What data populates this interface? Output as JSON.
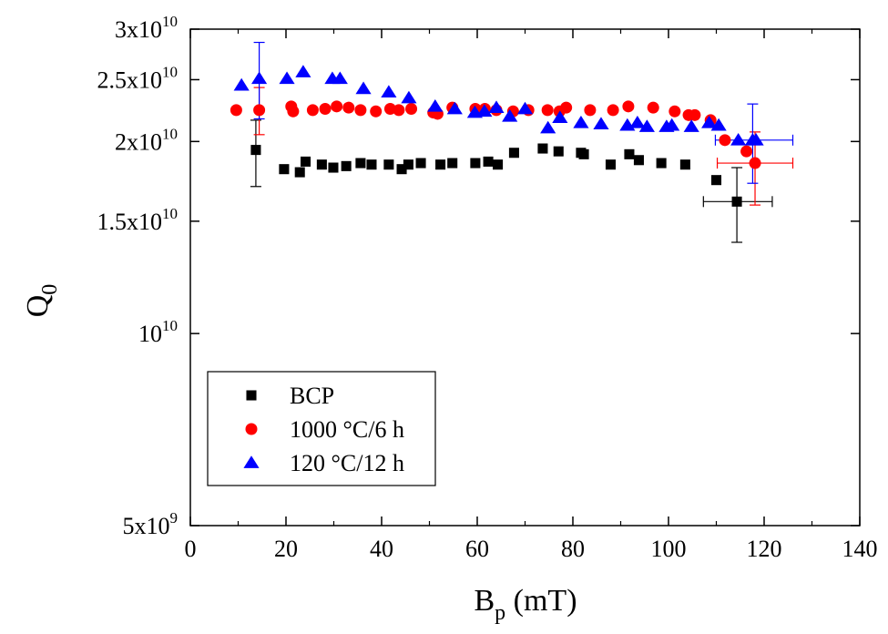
{
  "chart_data": {
    "type": "scatter",
    "title": "",
    "xlabel": "B",
    "xlabel_sub": "p",
    "xlabel_unit": " (mT)",
    "ylabel": "Q",
    "ylabel_sub": "0",
    "xlim": [
      0,
      140
    ],
    "ylim": [
      5000000000,
      30000000000
    ],
    "yscale": "log",
    "grid": false,
    "legend_position": "bottom-left",
    "x_ticks": [
      0,
      20,
      40,
      60,
      80,
      100,
      120,
      140
    ],
    "x_tick_labels": [
      "0",
      "20",
      "40",
      "60",
      "80",
      "100",
      "120",
      "140"
    ],
    "y_ticks": [
      {
        "value": 30000000000,
        "mantissa": "3x10",
        "exp": "10"
      },
      {
        "value": 25000000000,
        "mantissa": "2.5x10",
        "exp": "10"
      },
      {
        "value": 20000000000,
        "mantissa": "2x10",
        "exp": "10"
      },
      {
        "value": 15000000000,
        "mantissa": "1.5x10",
        "exp": "10"
      },
      {
        "value": 10000000000,
        "mantissa": "10",
        "exp": "10"
      },
      {
        "value": 5000000000,
        "mantissa": "5x10",
        "exp": "9"
      }
    ],
    "series": [
      {
        "name": "BCP",
        "marker": "square",
        "color": "#000000",
        "x": [
          13.7,
          19.6,
          22.9,
          24.1,
          27.5,
          29.9,
          32.6,
          35.6,
          37.9,
          41.5,
          44.2,
          45.6,
          48.2,
          52.3,
          54.8,
          59.6,
          62.3,
          64.3,
          67.7,
          73.7,
          77.0,
          81.7,
          82.3,
          87.9,
          91.8,
          93.8,
          98.5,
          103.5,
          110.0,
          114.3
        ],
        "y": [
          19400000000.0,
          18100000000.0,
          17900000000.0,
          18600000000.0,
          18400000000.0,
          18200000000.0,
          18300000000.0,
          18500000000.0,
          18400000000.0,
          18400000000.0,
          18100000000.0,
          18400000000.0,
          18500000000.0,
          18400000000.0,
          18500000000.0,
          18500000000.0,
          18600000000.0,
          18400000000.0,
          19200000000.0,
          19500000000.0,
          19300000000.0,
          19200000000.0,
          19100000000.0,
          18400000000.0,
          19100000000.0,
          18700000000.0,
          18500000000.0,
          18400000000.0,
          17400000000.0,
          16100000000.0
        ],
        "error_bars": [
          {
            "x": 13.7,
            "y": 19400000000.0,
            "y_low": 17000000000.0,
            "y_high": 21600000000.0
          },
          {
            "x": 114.3,
            "y": 16100000000.0,
            "y_low": 13900000000.0,
            "y_high": 18200000000.0,
            "x_low": 107.3,
            "x_high": 121.7
          }
        ]
      },
      {
        "name": "1000 °C/6 h",
        "marker": "circle",
        "color": "#ff0000",
        "x": [
          9.6,
          14.4,
          21.1,
          21.5,
          25.6,
          28.2,
          30.6,
          33.1,
          35.6,
          38.8,
          41.8,
          43.6,
          46.2,
          50.8,
          51.7,
          54.8,
          59.6,
          61.6,
          64.0,
          67.5,
          70.7,
          74.7,
          77.2,
          78.6,
          83.6,
          88.4,
          91.6,
          96.8,
          101.3,
          104.2,
          105.5,
          108.8,
          111.8,
          116.3,
          118.1
        ],
        "y": [
          22400000000.0,
          22400000000.0,
          22700000000.0,
          22300000000.0,
          22400000000.0,
          22500000000.0,
          22700000000.0,
          22600000000.0,
          22400000000.0,
          22300000000.0,
          22500000000.0,
          22400000000.0,
          22500000000.0,
          22200000000.0,
          22100000000.0,
          22600000000.0,
          22500000000.0,
          22500000000.0,
          22400000000.0,
          22300000000.0,
          22400000000.0,
          22400000000.0,
          22300000000.0,
          22600000000.0,
          22400000000.0,
          22400000000.0,
          22700000000.0,
          22600000000.0,
          22300000000.0,
          22000000000.0,
          22000000000.0,
          21600000000.0,
          20100000000.0,
          19300000000.0,
          18500000000.0
        ],
        "error_bars": [
          {
            "x": 14.4,
            "y": 22400000000.0,
            "y_low": 20500000000.0,
            "y_high": 24300000000.0
          },
          {
            "x": 118.1,
            "y": 18500000000.0,
            "y_low": 15900000000.0,
            "y_high": 20700000000.0,
            "x_low": 110.2,
            "x_high": 126.0
          }
        ]
      },
      {
        "name": "120 °C/12 h",
        "marker": "triangle",
        "color": "#0000ff",
        "x": [
          10.7,
          14.4,
          20.2,
          23.6,
          29.7,
          31.3,
          36.2,
          41.5,
          45.7,
          51.2,
          55.3,
          59.5,
          61.5,
          64.0,
          66.8,
          70.0,
          74.8,
          77.3,
          81.7,
          85.9,
          91.4,
          93.5,
          95.5,
          99.6,
          100.7,
          104.8,
          108.5,
          110.5,
          114.6,
          117.6,
          118.3
        ],
        "y": [
          24500000000.0,
          25100000000.0,
          25100000000.0,
          25700000000.0,
          25100000000.0,
          25100000000.0,
          24200000000.0,
          23900000000.0,
          23400000000.0,
          22700000000.0,
          22500000000.0,
          22200000000.0,
          22300000000.0,
          22600000000.0,
          21900000000.0,
          22500000000.0,
          21000000000.0,
          21800000000.0,
          21400000000.0,
          21300000000.0,
          21200000000.0,
          21400000000.0,
          21100000000.0,
          21100000000.0,
          21200000000.0,
          21100000000.0,
          21400000000.0,
          21200000000.0,
          20100000000.0,
          20100000000.0,
          20100000000.0
        ],
        "error_bars": [
          {
            "x": 14.4,
            "y": 25100000000.0,
            "y_low": 21700000000.0,
            "y_high": 28600000000.0
          },
          {
            "x": 117.6,
            "y": 20100000000.0,
            "y_low": 17200000000.0,
            "y_high": 22900000000.0,
            "x_low": 109.8,
            "x_high": 126.0
          }
        ]
      }
    ]
  }
}
